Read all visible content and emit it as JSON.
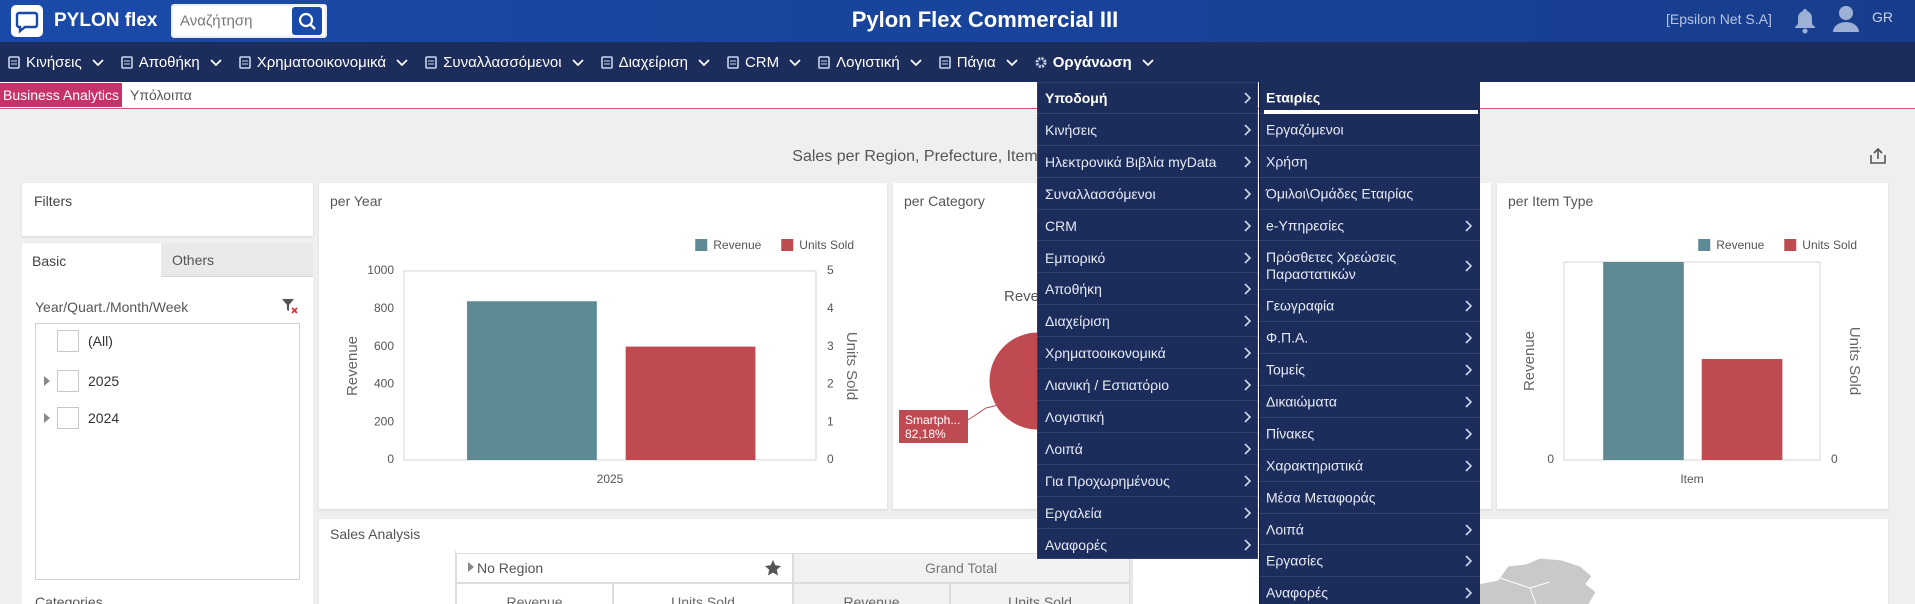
{
  "header": {
    "logo": "PYLON flex",
    "search_placeholder": "Αναζήτηση",
    "title": "Pylon Flex Commercial III",
    "company": "[Epsilon Net S.A]",
    "language": "GR"
  },
  "menu": {
    "items": [
      "Κινήσεις",
      "Αποθήκη",
      "Χρηματοοικονομικά",
      "Συναλλασσόμενοι",
      "Διαχείριση",
      "CRM",
      "Λογιστική",
      "Πάγια",
      "Οργάνωση"
    ],
    "active": 8
  },
  "tabs": {
    "items": [
      "Business Analytics",
      "Υπόλοιπα"
    ],
    "active": 0
  },
  "dashboard": {
    "title": "Sales per Region, Prefecture, Item"
  },
  "filters": {
    "title": "Filters",
    "tabs": [
      "Basic",
      "Others"
    ],
    "field": "Year/Quart./Month/Week",
    "items": [
      "(All)",
      "2025",
      "2024"
    ],
    "next_field": "Categories"
  },
  "chart_data": [
    {
      "type": "bar",
      "title": "per Year",
      "categories": [
        "2025"
      ],
      "series": [
        {
          "name": "Revenue",
          "color": "#5d8a93",
          "values": [
            840
          ]
        },
        {
          "name": "Units Sold",
          "color": "#bf4a51",
          "values": [
            3
          ],
          "axis": "y2"
        }
      ],
      "ylabel": "Revenue",
      "y2label": "Units Sold",
      "ylim": [
        0,
        1000
      ],
      "yticks": [
        0,
        200,
        400,
        600,
        800,
        1000
      ],
      "y2lim": [
        0,
        5
      ],
      "y2ticks": [
        0,
        1,
        2,
        3,
        4,
        5
      ],
      "legend": "top-right"
    },
    {
      "type": "pie",
      "title": "per Category",
      "series_label": "Revenue",
      "categories": [
        "Smartph..."
      ],
      "values": [
        82.18
      ],
      "value_labels": [
        "82,18%"
      ],
      "colors": [
        "#bf4a51"
      ]
    },
    {
      "type": "bar",
      "title": "per Item Type",
      "categories": [
        "Item"
      ],
      "series": [
        {
          "name": "Revenue",
          "color": "#5d8a93",
          "values": [
            1000
          ]
        },
        {
          "name": "Units Sold",
          "color": "#bf4a51",
          "values": [
            2.55
          ],
          "axis": "y2"
        }
      ],
      "ylabel": "Revenue",
      "y2label": "Units Sold",
      "ylim": [
        0,
        1000
      ],
      "yticks": [
        0
      ],
      "y2lim": [
        0,
        5
      ],
      "y2ticks": [
        0
      ],
      "legend": "top-right"
    }
  ],
  "sales_analysis": {
    "title": "Sales Analysis",
    "column_header": "No Region",
    "grand_total": "Grand Total",
    "measures": [
      "Revenue",
      "Units Sold",
      "Revenue",
      "Units Sold"
    ]
  },
  "dropdown": {
    "active": 0,
    "main": [
      "Υποδομή",
      "Κινήσεις",
      "Ηλεκτρονικά Βιβλία myData",
      "Συναλλασσόμενοι",
      "CRM",
      "Εμπορικό",
      "Αποθήκη",
      "Διαχείριση",
      "Χρηματοοικονομικά",
      "Λιανική / Εστιατόριο",
      "Λογιστική",
      "Λοιπά",
      "Για Προχωρημένους",
      "Εργαλεία",
      "Αναφορές"
    ],
    "submenu": [
      {
        "label": "Εταιρίες",
        "submenu": false
      },
      {
        "label": "Εργαζόμενοι",
        "submenu": false
      },
      {
        "label": "Χρήση",
        "submenu": false
      },
      {
        "label": "Όμιλοι\\Ομάδες Εταιρίας",
        "submenu": false
      },
      {
        "label": "e-Υπηρεσίες",
        "submenu": true
      },
      {
        "label": "Πρόσθετες Χρεώσεις Παραστατικών",
        "submenu": true
      },
      {
        "label": "Γεωγραφία",
        "submenu": true
      },
      {
        "label": "Φ.Π.Α.",
        "submenu": true
      },
      {
        "label": "Τομείς",
        "submenu": true
      },
      {
        "label": "Δικαιώματα",
        "submenu": true
      },
      {
        "label": "Πίνακες",
        "submenu": true
      },
      {
        "label": "Χαρακτηριστικά",
        "submenu": true
      },
      {
        "label": "Μέσα Μεταφοράς",
        "submenu": false
      },
      {
        "label": "Λοιπά",
        "submenu": true
      },
      {
        "label": "Εργασίες",
        "submenu": true
      },
      {
        "label": "Αναφορές",
        "submenu": true
      }
    ]
  }
}
